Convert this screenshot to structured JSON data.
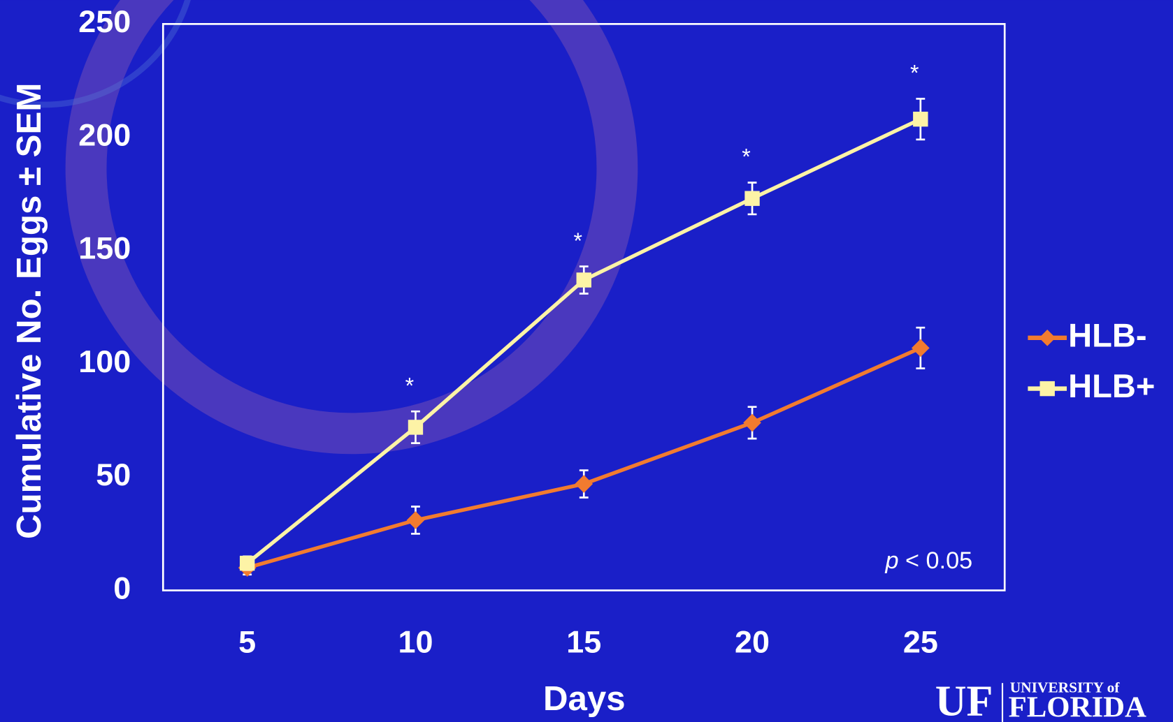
{
  "chart_data": {
    "type": "line",
    "x_label": "Days",
    "y_label": "Cumulative No. Eggs ± SEM",
    "x": [
      5,
      10,
      15,
      20,
      25
    ],
    "series": [
      {
        "name": "HLB-",
        "color": "#f27b2f",
        "marker": "diamond",
        "values": [
          10,
          31,
          47,
          74,
          107
        ],
        "errors": [
          3,
          6,
          6,
          7,
          9
        ]
      },
      {
        "name": "HLB+",
        "color": "#fdf3a6",
        "marker": "square",
        "values": [
          12,
          72,
          137,
          173,
          208
        ],
        "errors": [
          3,
          7,
          6,
          7,
          9
        ]
      }
    ],
    "xlim": [
      2.5,
      27.5
    ],
    "xticks": [
      5,
      10,
      15,
      20,
      25
    ],
    "ylim": [
      0,
      250
    ],
    "yticks": [
      0,
      50,
      100,
      150,
      200,
      250
    ],
    "grid": false,
    "legend": "right",
    "annotations": [
      {
        "text": "*",
        "x": 10
      },
      {
        "text": "*",
        "x": 15
      },
      {
        "text": "*",
        "x": 20
      },
      {
        "text": "*",
        "x": 25
      }
    ],
    "note": "p < 0.05"
  },
  "logo": {
    "mark": "UF",
    "line1": "UNIVERSITY of",
    "line2": "FLORIDA"
  }
}
